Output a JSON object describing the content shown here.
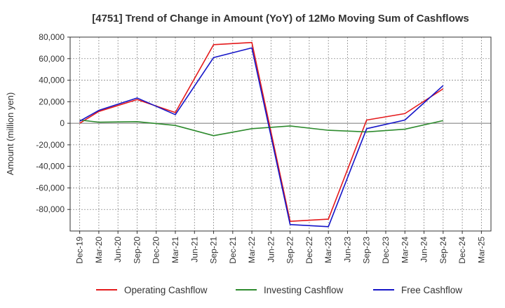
{
  "chart_data": {
    "type": "line",
    "title": "[4751]  Trend of Change in Amount (YoY) of 12Mo Moving Sum of Cashflows",
    "xlabel": "",
    "ylabel": "Amount (million yen)",
    "ylim": [
      -100000,
      80000
    ],
    "yticks": [
      80000,
      60000,
      40000,
      20000,
      0,
      -20000,
      -40000,
      -60000,
      -80000
    ],
    "ytick_labels": [
      "80,000",
      "60,000",
      "40,000",
      "20,000",
      "0",
      "-20,000",
      "-40,000",
      "-60,000",
      "-80,000"
    ],
    "categories": [
      "Dec-19",
      "Mar-20",
      "Jun-20",
      "Sep-20",
      "Dec-20",
      "Mar-21",
      "Jun-21",
      "Sep-21",
      "Dec-21",
      "Mar-22",
      "Jun-22",
      "Sep-22",
      "Dec-22",
      "Mar-23",
      "Jun-23",
      "Sep-23",
      "Dec-23",
      "Mar-24",
      "Jun-24",
      "Sep-24",
      "Dec-24",
      "Mar-25"
    ],
    "grid": true,
    "legend_position": "bottom",
    "series": [
      {
        "name": "Operating Cashflow",
        "color": "#e41a1c",
        "values": [
          0,
          11000,
          null,
          22000,
          null,
          10000,
          null,
          73000,
          null,
          75000,
          null,
          -91000,
          null,
          -89000,
          null,
          3000,
          null,
          9000,
          null,
          32000,
          null,
          null
        ]
      },
      {
        "name": "Investing Cashflow",
        "color": "#2e8b2e",
        "values": [
          3000,
          1000,
          null,
          1500,
          null,
          -2000,
          null,
          -11500,
          null,
          -5000,
          null,
          -2500,
          null,
          -6500,
          null,
          -8000,
          null,
          -5500,
          null,
          2500,
          null,
          null
        ]
      },
      {
        "name": "Free Cashflow",
        "color": "#1515c8",
        "values": [
          2000,
          12000,
          null,
          23500,
          null,
          8000,
          null,
          61000,
          null,
          70000,
          null,
          -94000,
          null,
          -96000,
          null,
          -5000,
          null,
          3000,
          null,
          35000,
          null,
          null
        ]
      }
    ]
  }
}
